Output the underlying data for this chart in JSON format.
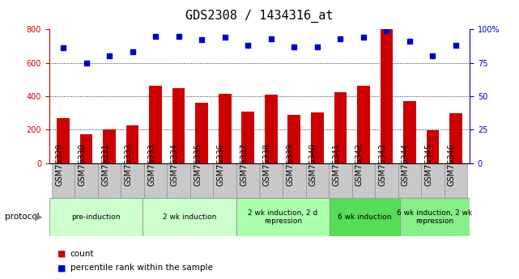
{
  "title": "GDS2308 / 1434316_at",
  "categories": [
    "GSM76329",
    "GSM76330",
    "GSM76331",
    "GSM76332",
    "GSM76333",
    "GSM76334",
    "GSM76335",
    "GSM76336",
    "GSM76337",
    "GSM76338",
    "GSM76339",
    "GSM76340",
    "GSM76341",
    "GSM76342",
    "GSM76343",
    "GSM76344",
    "GSM76345",
    "GSM76346"
  ],
  "bar_values": [
    270,
    175,
    200,
    225,
    465,
    450,
    360,
    415,
    310,
    410,
    290,
    305,
    425,
    465,
    800,
    370,
    195,
    300
  ],
  "scatter_values": [
    86,
    75,
    80,
    83,
    95,
    95,
    92,
    94,
    88,
    93,
    87,
    87,
    93,
    94,
    99,
    91,
    80,
    88
  ],
  "bar_color": "#cc0000",
  "scatter_color": "#0000cc",
  "ylim_left": [
    0,
    800
  ],
  "ylim_right": [
    0,
    100
  ],
  "yticks_left": [
    0,
    200,
    400,
    600,
    800
  ],
  "yticks_right": [
    0,
    25,
    50,
    75,
    100
  ],
  "ytick_labels_right": [
    "0",
    "25",
    "50",
    "75",
    "100%"
  ],
  "grid_values": [
    200,
    400,
    600
  ],
  "protocols": [
    {
      "label": "pre-induction",
      "start": 0,
      "end": 4,
      "color": "#ccffcc"
    },
    {
      "label": "2 wk induction",
      "start": 4,
      "end": 8,
      "color": "#ccffcc"
    },
    {
      "label": "2 wk induction, 2 d\nrepression",
      "start": 8,
      "end": 12,
      "color": "#aaffaa"
    },
    {
      "label": "6 wk induction",
      "start": 12,
      "end": 15,
      "color": "#55dd55"
    },
    {
      "label": "6 wk induction, 2 wk\nrepression",
      "start": 15,
      "end": 18,
      "color": "#88ee88"
    }
  ],
  "protocol_label": "protocol",
  "legend_count_label": "count",
  "legend_pct_label": "percentile rank within the sample",
  "title_fontsize": 11,
  "tick_fontsize": 7,
  "axis_label_color_left": "#cc0000",
  "axis_label_color_right": "#0000cc",
  "sample_bg_color": "#c8c8c8",
  "sample_border_color": "#888888"
}
